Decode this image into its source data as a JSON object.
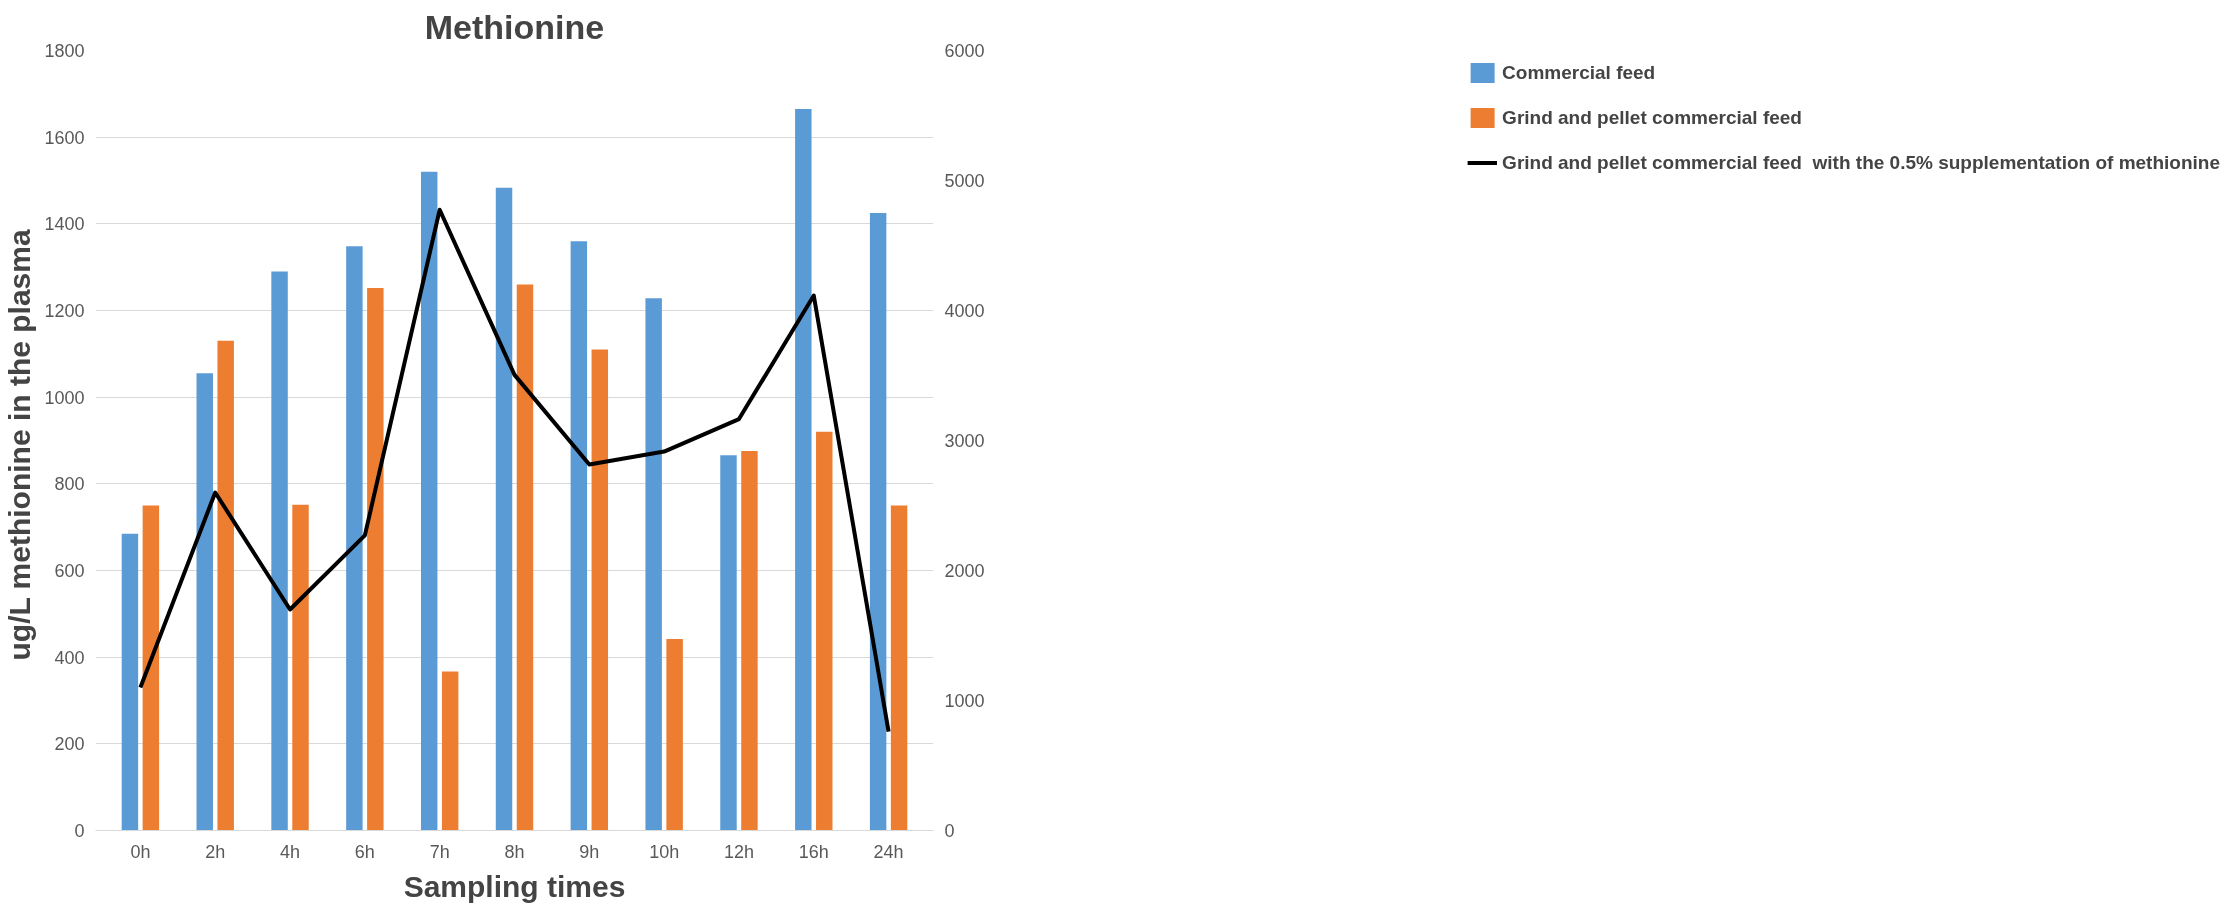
{
  "chart_data": {
    "type": "bar",
    "title": "Methionine",
    "xlabel": "Sampling times",
    "ylabel": "ug/L  methionine in the plasma",
    "categories": [
      "0h",
      "2h",
      "4h",
      "6h",
      "7h",
      "8h",
      "9h",
      "10h",
      "12h",
      "16h",
      "24h"
    ],
    "series": [
      {
        "name": "Commercial feed",
        "color": "#5b9bd5",
        "values": [
          685,
          1055,
          1290,
          1348,
          1520,
          1483,
          1360,
          1228,
          866,
          1665,
          1425
        ]
      },
      {
        "name": "Grind and pellet commercial feed",
        "color": "#ed7d31",
        "values": [
          750,
          1130,
          752,
          1252,
          367,
          1260,
          1110,
          442,
          876,
          920,
          750
        ]
      },
      {
        "name": "Grind and pellet commercial feed  with the 0.5% supplementation of methionine",
        "color": "#000000",
        "type": "line",
        "axis": "y2",
        "values": [
          1100,
          2600,
          1700,
          2270,
          4775,
          3505,
          2815,
          2915,
          3165,
          4115,
          760
        ]
      }
    ],
    "ylim": [
      0,
      1800
    ],
    "yticks": [
      0,
      200,
      400,
      600,
      800,
      1000,
      1200,
      1400,
      1600,
      1800
    ],
    "y2lim": [
      0,
      6000
    ],
    "y2ticks": [
      0,
      1000,
      2000,
      3000,
      4000,
      5000,
      6000
    ],
    "grid": "y",
    "legend": "right",
    "marker": "none",
    "line_style": "solid"
  }
}
